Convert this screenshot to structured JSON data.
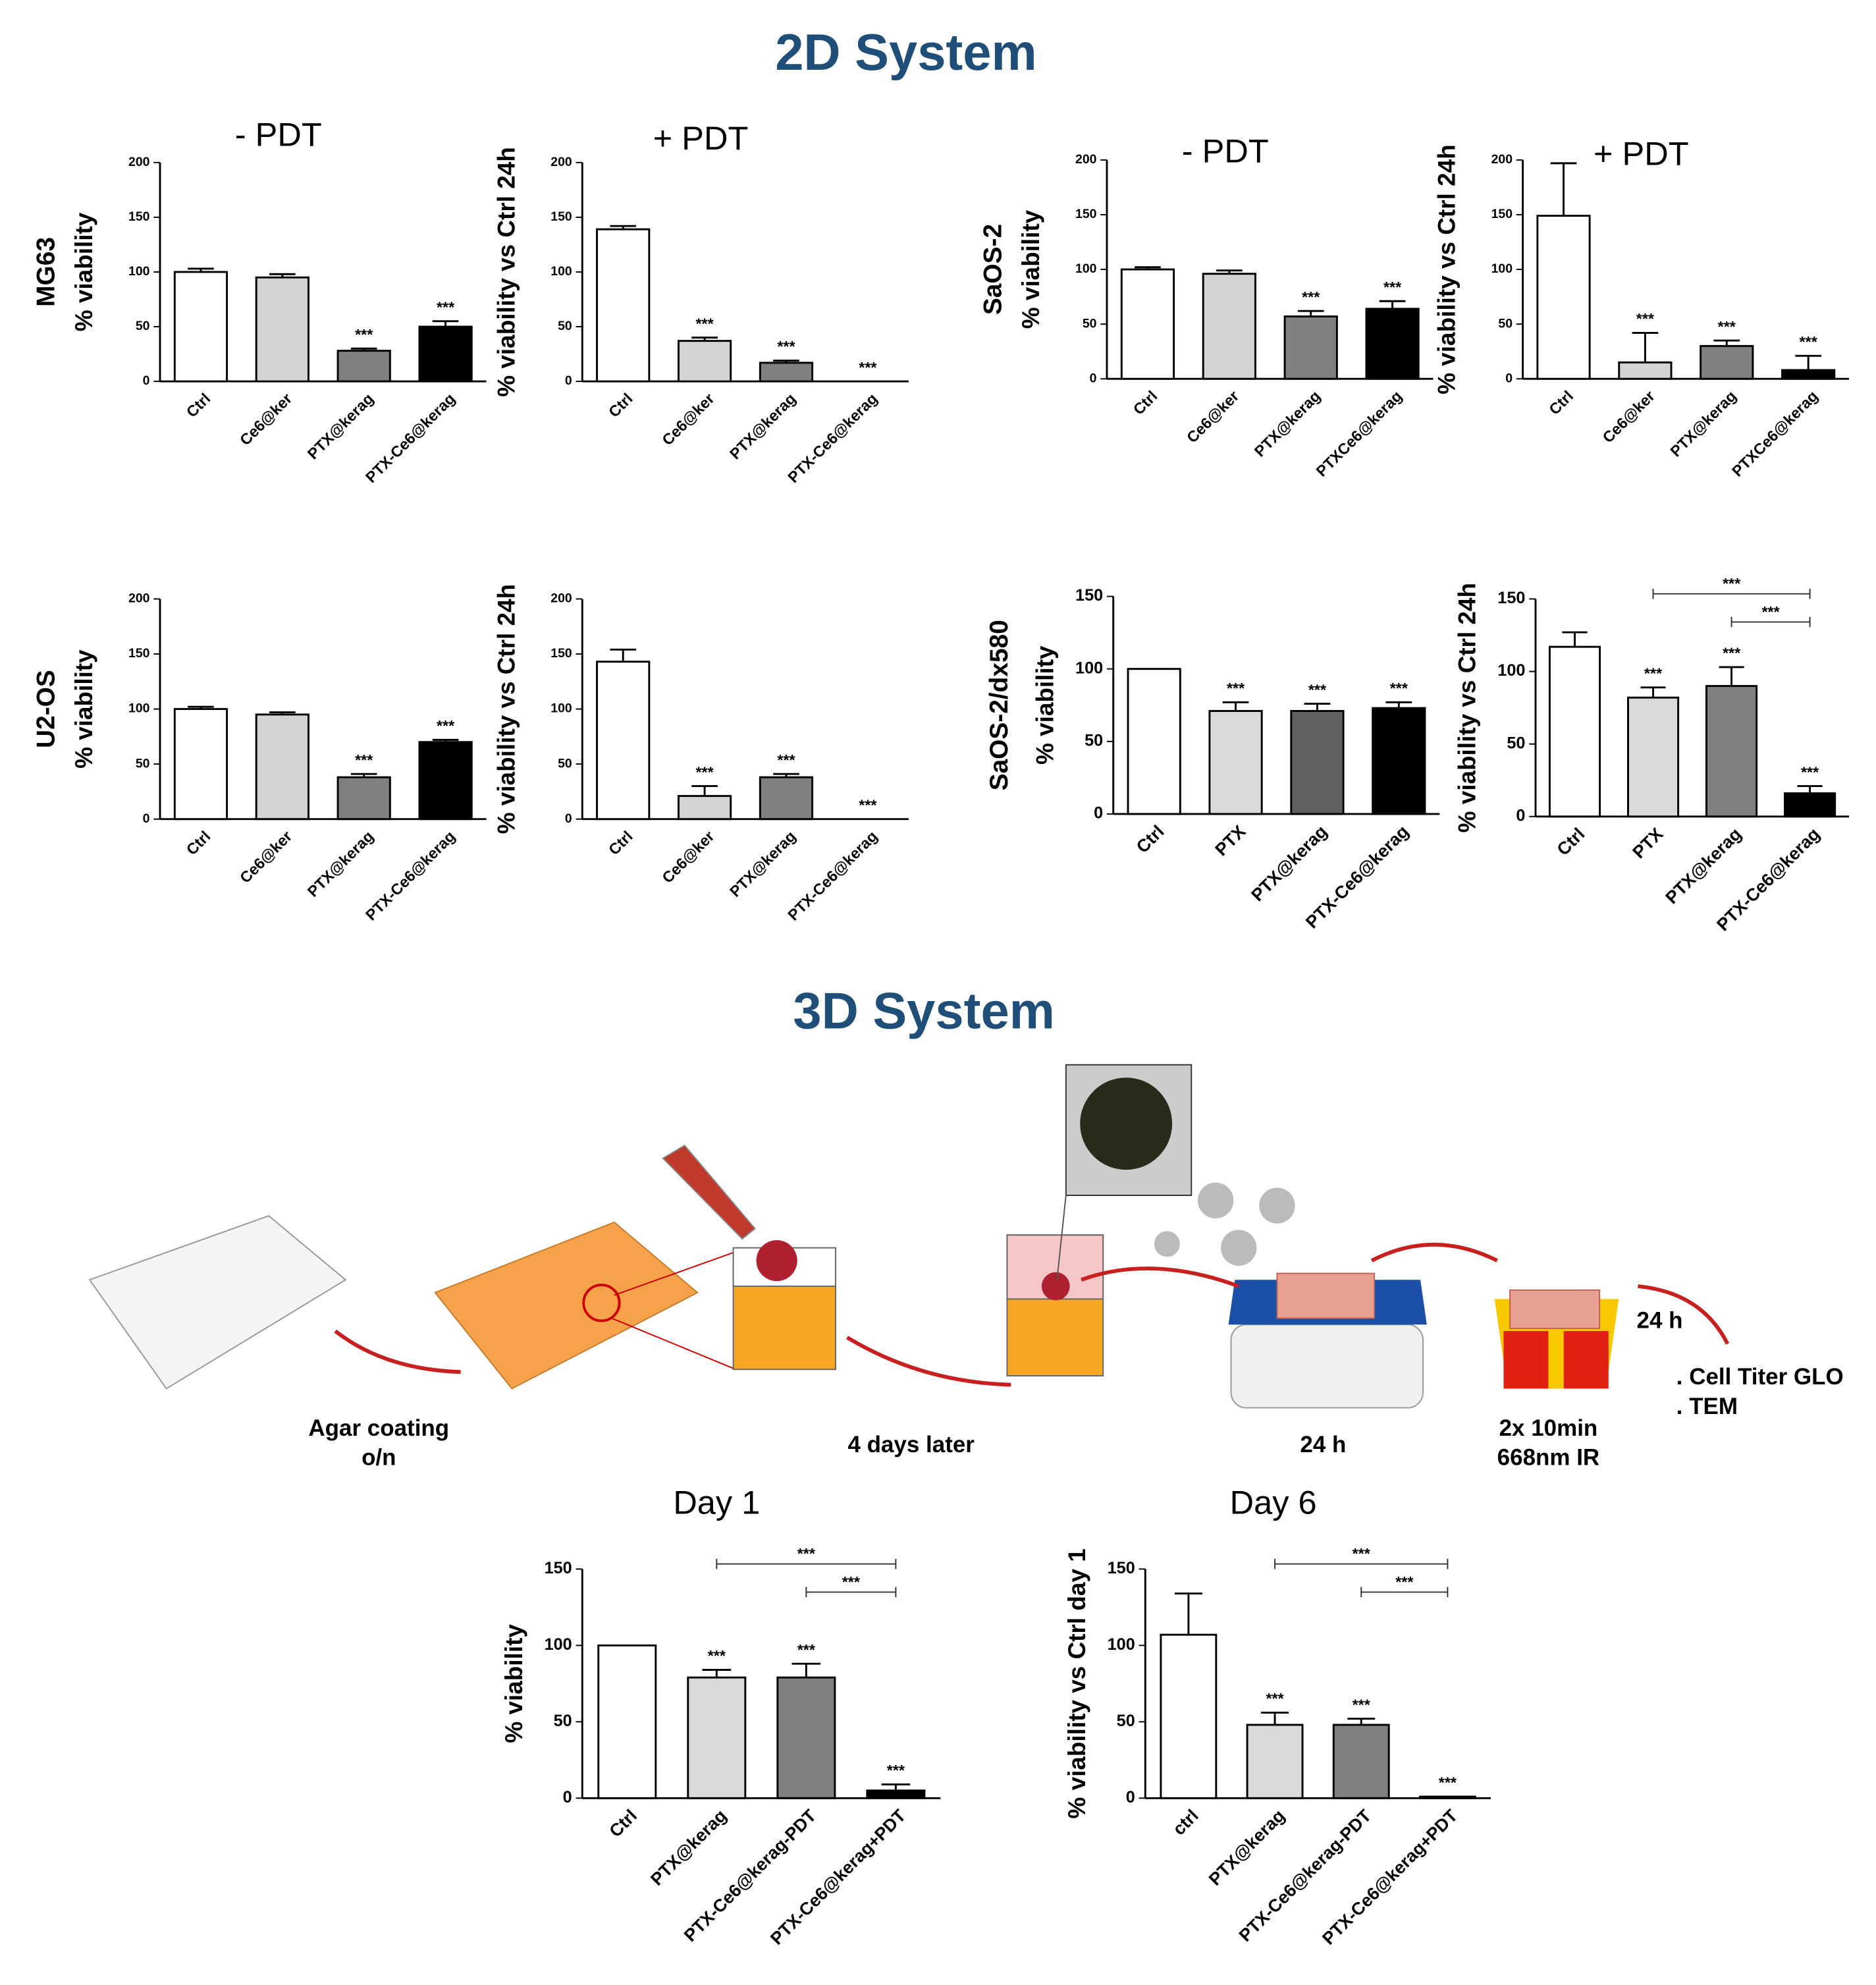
{
  "sections": {
    "top": "2D System",
    "bottom": "3D System"
  },
  "diagram": {
    "step1": [
      "Agar coating",
      "o/n"
    ],
    "step2": "4 days later",
    "step3": "24 h",
    "step4": [
      "2x 10min",
      "668nm IR"
    ],
    "step5": "24 h",
    "readouts": [
      ". Cell Titer GLO",
      ". TEM"
    ]
  },
  "chart_data": [
    {
      "type": "bar",
      "title": "- PDT",
      "row_label": "MG63",
      "y_label": "% viability",
      "categories": [
        "Ctrl",
        "Ce6@ker",
        "PTX@kerag",
        "PTX-Ce6@kerag"
      ],
      "values": [
        100,
        95,
        28,
        50
      ],
      "errors": [
        3,
        3,
        2,
        5
      ],
      "colors": [
        "#ffffff",
        "#d3d3d3",
        "#808080",
        "#000000"
      ],
      "significance": [
        null,
        null,
        "***",
        "***"
      ],
      "ylim": [
        0,
        200
      ],
      "yticks": [
        0,
        50,
        100,
        150,
        200
      ]
    },
    {
      "type": "bar",
      "title": "+ PDT",
      "y_label": "% viability vs Ctrl 24h",
      "categories": [
        "Ctrl",
        "Ce6@ker",
        "PTX@kerag",
        "PTX-Ce6@kerag"
      ],
      "values": [
        139,
        37,
        17,
        0
      ],
      "errors": [
        3,
        3,
        2,
        null
      ],
      "colors": [
        "#ffffff",
        "#d3d3d3",
        "#808080",
        "#000000"
      ],
      "significance": [
        null,
        "***",
        "***",
        "***"
      ],
      "ylim": [
        0,
        200
      ],
      "yticks": [
        0,
        50,
        100,
        150,
        200
      ]
    },
    {
      "type": "bar",
      "title": "- PDT",
      "row_label": "SaOS-2",
      "y_label": "% viability",
      "categories": [
        "Ctrl",
        "Ce6@ker",
        "PTX@kerag",
        "PTXCe6@kerag"
      ],
      "values": [
        100,
        96,
        57,
        64
      ],
      "errors": [
        2,
        3,
        5,
        7
      ],
      "colors": [
        "#ffffff",
        "#d3d3d3",
        "#808080",
        "#000000"
      ],
      "significance": [
        null,
        null,
        "***",
        "***"
      ],
      "ylim": [
        0,
        200
      ],
      "yticks": [
        0,
        50,
        100,
        150,
        200
      ]
    },
    {
      "type": "bar",
      "title": "+ PDT",
      "y_label": "% viability vs Ctrl 24h",
      "categories": [
        "Ctrl",
        "Ce6@ker",
        "PTX@kerag",
        "PTXCe6@kerag"
      ],
      "values": [
        149,
        15,
        30,
        8
      ],
      "errors": [
        48,
        27,
        5,
        13
      ],
      "colors": [
        "#ffffff",
        "#d3d3d3",
        "#808080",
        "#000000"
      ],
      "significance": [
        null,
        "***",
        "***",
        "***"
      ],
      "ylim": [
        0,
        200
      ],
      "yticks": [
        0,
        50,
        100,
        150,
        200
      ]
    },
    {
      "type": "bar",
      "row_label": "U2-OS",
      "y_label": "% viability",
      "categories": [
        "Ctrl",
        "Ce6@ker",
        "PTX@kerag",
        "PTX-Ce6@kerag"
      ],
      "values": [
        100,
        95,
        38,
        70
      ],
      "errors": [
        2,
        2,
        3,
        2
      ],
      "colors": [
        "#ffffff",
        "#d3d3d3",
        "#808080",
        "#000000"
      ],
      "significance": [
        null,
        null,
        "***",
        "***"
      ],
      "ylim": [
        0,
        200
      ],
      "yticks": [
        0,
        50,
        100,
        150,
        200
      ]
    },
    {
      "type": "bar",
      "y_label": "% viability vs Ctrl 24h",
      "categories": [
        "Ctrl",
        "Ce6@ker",
        "PTX@kerag",
        "PTX-Ce6@kerag"
      ],
      "values": [
        143,
        21,
        38,
        0
      ],
      "errors": [
        11,
        9,
        3,
        null
      ],
      "colors": [
        "#ffffff",
        "#d3d3d3",
        "#808080",
        "#000000"
      ],
      "significance": [
        null,
        "***",
        "***",
        "***"
      ],
      "ylim": [
        0,
        200
      ],
      "yticks": [
        0,
        50,
        100,
        150,
        200
      ]
    },
    {
      "type": "bar",
      "row_label": "SaOS-2/dx580",
      "y_label": "% viability",
      "categories": [
        "Ctrl",
        "PTX",
        "PTX@kerag",
        "PTX-Ce6@kerag"
      ],
      "values": [
        100,
        71,
        71,
        73
      ],
      "errors": [
        null,
        6,
        5,
        4
      ],
      "colors": [
        "#ffffff",
        "#d9d9d9",
        "#606060",
        "#000000"
      ],
      "significance": [
        null,
        "***",
        "***",
        "***"
      ],
      "ylim": [
        0,
        150
      ],
      "yticks": [
        0,
        50,
        100,
        150
      ]
    },
    {
      "type": "bar",
      "y_label": "% viability vs Ctrl 24h",
      "categories": [
        "Ctrl",
        "PTX",
        "PTX@kerag",
        "PTX-Ce6@kerag"
      ],
      "values": [
        117,
        82,
        90,
        16
      ],
      "errors": [
        10,
        7,
        13,
        5
      ],
      "colors": [
        "#ffffff",
        "#d9d9d9",
        "#808080",
        "#000000"
      ],
      "significance": [
        null,
        "***",
        "***",
        "***"
      ],
      "brackets": [
        {
          "from": "PTX",
          "to": "PTX-Ce6@kerag",
          "label": "***"
        },
        {
          "from": "PTX@kerag",
          "to": "PTX-Ce6@kerag",
          "label": "***"
        }
      ],
      "ylim": [
        0,
        150
      ],
      "yticks": [
        0,
        50,
        100,
        150
      ]
    },
    {
      "type": "bar",
      "title": "Day 1",
      "y_label": "% viability",
      "categories": [
        "Ctrl",
        "PTX@kerag",
        "PTX-Ce6@kerag-PDT",
        "PTX-Ce6@kerag+PDT"
      ],
      "values": [
        100,
        79,
        79,
        5
      ],
      "errors": [
        null,
        5,
        9,
        4
      ],
      "colors": [
        "#ffffff",
        "#d9d9d9",
        "#808080",
        "#000000"
      ],
      "significance": [
        null,
        "***",
        "***",
        "***"
      ],
      "brackets": [
        {
          "from": "PTX@kerag",
          "to": "PTX-Ce6@kerag+PDT",
          "label": "***"
        },
        {
          "from": "PTX-Ce6@kerag-PDT",
          "to": "PTX-Ce6@kerag+PDT",
          "label": "***"
        }
      ],
      "ylim": [
        0,
        150
      ],
      "yticks": [
        0,
        50,
        100,
        150
      ]
    },
    {
      "type": "bar",
      "title": "Day 6",
      "y_label": "% viability vs  Ctrl day 1",
      "categories": [
        "ctrl",
        "PTX@kerag",
        "PTX-Ce6@kerag-PDT",
        "PTX-Ce6@kerag+PDT"
      ],
      "values": [
        107,
        48,
        48,
        1
      ],
      "errors": [
        27,
        8,
        4,
        null
      ],
      "colors": [
        "#ffffff",
        "#d9d9d9",
        "#808080",
        "#000000"
      ],
      "significance": [
        null,
        "***",
        "***",
        "***"
      ],
      "brackets": [
        {
          "from": "PTX@kerag",
          "to": "PTX-Ce6@kerag+PDT",
          "label": "***"
        },
        {
          "from": "PTX-Ce6@kerag-PDT",
          "to": "PTX-Ce6@kerag+PDT",
          "label": "***"
        }
      ],
      "ylim": [
        0,
        150
      ],
      "yticks": [
        0,
        50,
        100,
        150
      ]
    }
  ]
}
